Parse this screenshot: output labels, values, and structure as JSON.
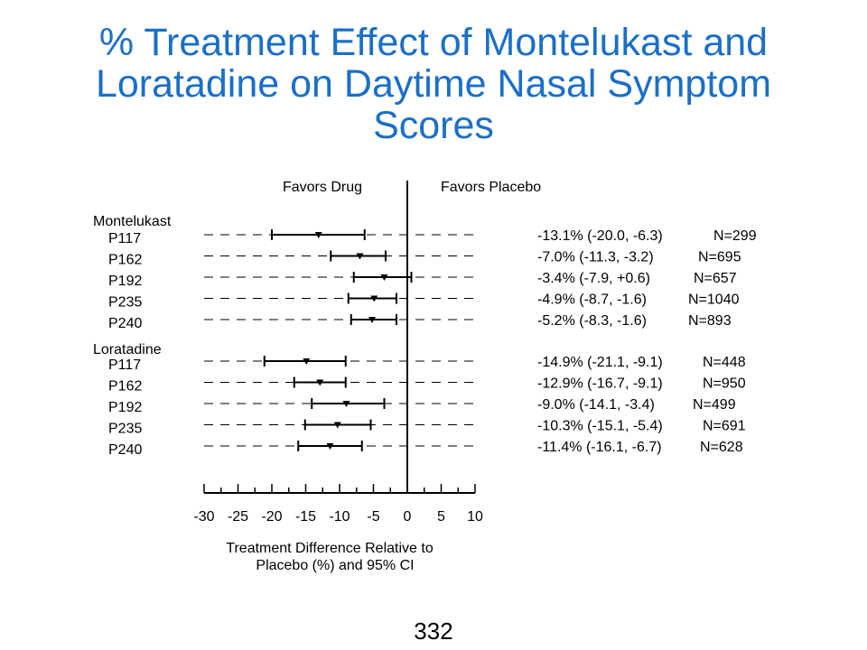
{
  "title_lines": [
    "% Treatment Effect of Montelukast and",
    "Loratadine on Daytime Nasal Symptom",
    "Scores"
  ],
  "page_number": "332",
  "colors": {
    "title": "#1b6fc6",
    "ink": "#000000"
  },
  "chart_data": {
    "type": "forest",
    "headers": {
      "left": "Favors Drug",
      "right": "Favors Placebo"
    },
    "xlabel_lines": [
      "Treatment Difference Relative to",
      "Placebo (%) and 95% CI"
    ],
    "xlim": [
      -30,
      10
    ],
    "xticks": [
      -30,
      -25,
      -20,
      -15,
      -10,
      -5,
      0,
      5,
      10
    ],
    "reference_line": 0,
    "groups": [
      {
        "name": "Montelukast",
        "studies": [
          {
            "label": "P117",
            "estimate": -13.1,
            "ci": [
              -20.0,
              -6.3
            ],
            "summary": "-13.1% (-20.0, -6.3)",
            "n": "N=299"
          },
          {
            "label": "P162",
            "estimate": -7.0,
            "ci": [
              -11.3,
              -3.2
            ],
            "summary": "-7.0% (-11.3, -3.2)",
            "n": "N=695"
          },
          {
            "label": "P192",
            "estimate": -3.4,
            "ci": [
              -7.9,
              0.6
            ],
            "summary": "-3.4% (-7.9, +0.6)",
            "n": "N=657"
          },
          {
            "label": "P235",
            "estimate": -4.9,
            "ci": [
              -8.7,
              -1.6
            ],
            "summary": "-4.9% (-8.7, -1.6)",
            "n": "N=1040"
          },
          {
            "label": "P240",
            "estimate": -5.2,
            "ci": [
              -8.3,
              -1.6
            ],
            "summary": "-5.2% (-8.3,  -1.6)",
            "n": "N=893"
          }
        ]
      },
      {
        "name": "Loratadine",
        "studies": [
          {
            "label": "P117",
            "estimate": -14.9,
            "ci": [
              -21.1,
              -9.1
            ],
            "summary": "-14.9% (-21.1, -9.1)",
            "n": "N=448"
          },
          {
            "label": "P162",
            "estimate": -12.9,
            "ci": [
              -16.7,
              -9.1
            ],
            "summary": "-12.9% (-16.7, -9.1)",
            "n": "N=950"
          },
          {
            "label": "P192",
            "estimate": -9.0,
            "ci": [
              -14.1,
              -3.4
            ],
            "summary": "-9.0% (-14.1, -3.4)",
            "n": "N=499"
          },
          {
            "label": "P235",
            "estimate": -10.3,
            "ci": [
              -15.1,
              -5.4
            ],
            "summary": "-10.3% (-15.1, -5.4)",
            "n": "N=691"
          },
          {
            "label": "P240",
            "estimate": -11.4,
            "ci": [
              -16.1,
              -6.7
            ],
            "summary": "-11.4% (-16.1, -6.7)",
            "n": "N=628"
          }
        ]
      }
    ]
  }
}
